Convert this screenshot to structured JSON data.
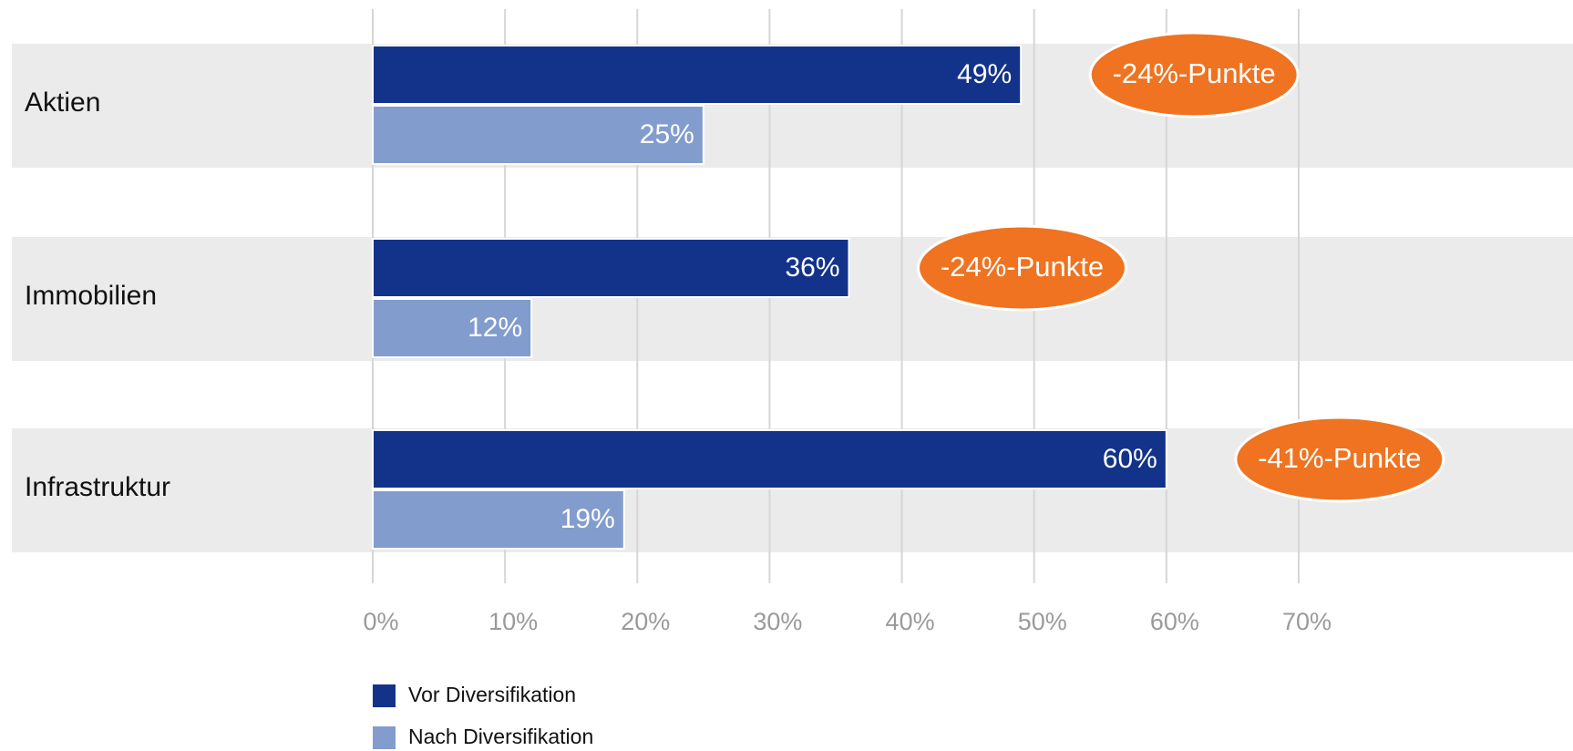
{
  "chart_data": {
    "type": "bar",
    "orientation": "horizontal",
    "categories": [
      "Aktien",
      "Immobilien",
      "Infrastruktur"
    ],
    "series": [
      {
        "name": "Vor Diversifikation",
        "values": [
          49,
          36,
          60
        ],
        "labels": [
          "49%",
          "36%",
          "60%"
        ],
        "color": "#13338a"
      },
      {
        "name": "Nach Diversifikation",
        "values": [
          25,
          12,
          19
        ],
        "labels": [
          "25%",
          "12%",
          "19%"
        ],
        "color": "#829ccd"
      }
    ],
    "annotations": [
      "-24%-Punkte",
      "-24%-Punkte",
      "-41%-Punkte"
    ],
    "annotation_color": "#ef7320",
    "row_background": "#ebebeb",
    "gridline_color": "#d6d6d6",
    "x_ticks": [
      0,
      10,
      20,
      30,
      40,
      50,
      60,
      70
    ],
    "x_tick_labels": [
      "0%",
      "10%",
      "20%",
      "30%",
      "40%",
      "50%",
      "60%",
      "70%"
    ],
    "xlim": [
      0,
      70
    ],
    "grid": true,
    "legend_position": "bottom-left"
  }
}
